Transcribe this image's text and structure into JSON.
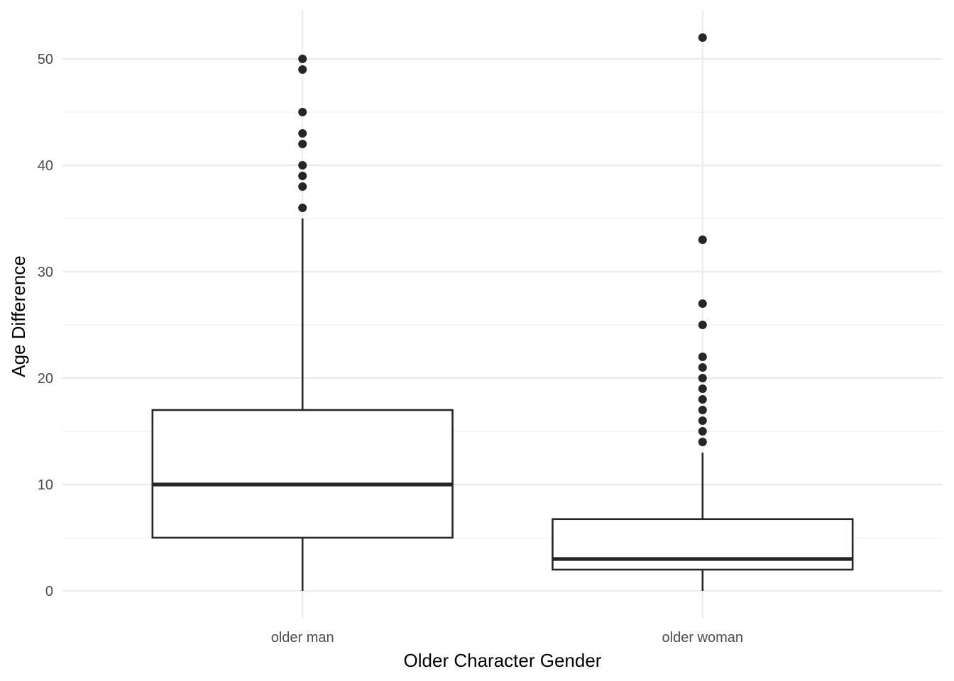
{
  "chart_data": {
    "type": "box",
    "title": "",
    "xlabel": "Older Character Gender",
    "ylabel": "Age Difference",
    "ylim": [
      -2.6,
      54.6
    ],
    "y_ticks": [
      0,
      10,
      20,
      30,
      40,
      50
    ],
    "y_minor_ticks": [
      5,
      15,
      25,
      35,
      45
    ],
    "grid": true,
    "categories": [
      "older man",
      "older woman"
    ],
    "boxes": [
      {
        "category": "older man",
        "whisker_low": 0,
        "q1": 5,
        "median": 10,
        "q3": 17,
        "whisker_high": 35,
        "outliers": [
          36,
          38,
          39,
          40,
          42,
          43,
          45,
          49,
          50
        ]
      },
      {
        "category": "older woman",
        "whisker_low": 0,
        "q1": 2,
        "median": 3,
        "q3": 6.75,
        "whisker_high": 13,
        "outliers": [
          14,
          15,
          16,
          17,
          18,
          19,
          20,
          21,
          22,
          25,
          27,
          33,
          52
        ]
      }
    ],
    "colors": {
      "box_line": "#262626",
      "box_fill": "#ffffff",
      "grid": "#ebebeb",
      "tick_text": "#4d4d4d"
    }
  }
}
